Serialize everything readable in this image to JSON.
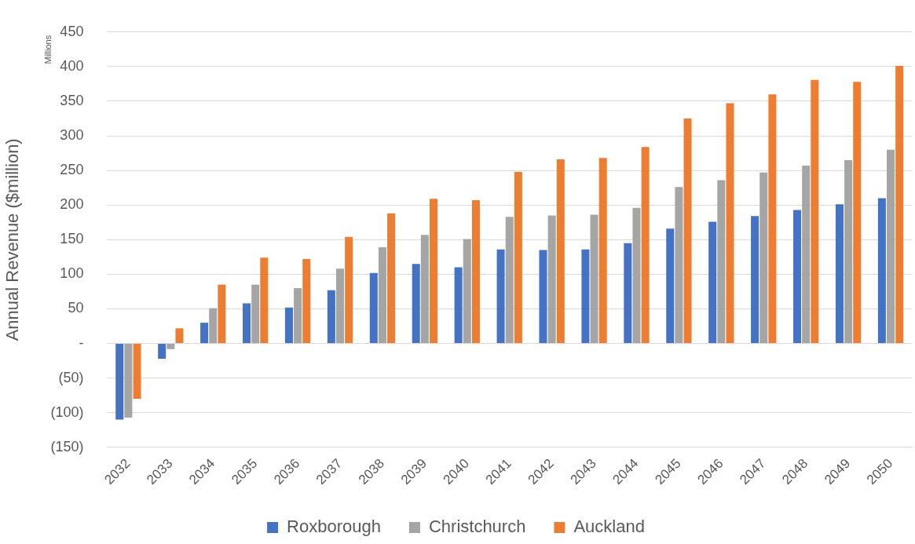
{
  "chart_data": {
    "type": "bar",
    "ylabel": "Annual Revenue ($million)",
    "annotations": [
      "Millions"
    ],
    "categories": [
      "2032",
      "2033",
      "2034",
      "2035",
      "2036",
      "2037",
      "2038",
      "2039",
      "2040",
      "2041",
      "2042",
      "2043",
      "2044",
      "2045",
      "2046",
      "2047",
      "2048",
      "2049",
      "2050"
    ],
    "series": [
      {
        "name": "Roxborough",
        "color": "#4472c4",
        "values": [
          -110,
          -22,
          30,
          58,
          52,
          77,
          102,
          115,
          110,
          136,
          135,
          136,
          145,
          166,
          176,
          184,
          193,
          201,
          210
        ]
      },
      {
        "name": "Christchurch",
        "color": "#a5a5a5",
        "values": [
          -107,
          -8,
          51,
          85,
          80,
          108,
          139,
          157,
          151,
          183,
          185,
          186,
          196,
          226,
          236,
          247,
          257,
          265,
          280
        ]
      },
      {
        "name": "Auckland",
        "color": "#ed7d31",
        "values": [
          -80,
          22,
          85,
          124,
          122,
          154,
          188,
          209,
          207,
          248,
          266,
          268,
          284,
          325,
          347,
          360,
          381,
          378,
          401
        ]
      }
    ],
    "ylim": [
      -150,
      450
    ],
    "yticks": [
      {
        "value": -150,
        "label": "(150)"
      },
      {
        "value": -100,
        "label": "(100)"
      },
      {
        "value": -50,
        "label": "(50)"
      },
      {
        "value": 0,
        "label": "-"
      },
      50,
      100,
      150,
      200,
      250,
      300,
      350,
      400,
      450
    ],
    "grid": "y",
    "legend": "bottom"
  }
}
